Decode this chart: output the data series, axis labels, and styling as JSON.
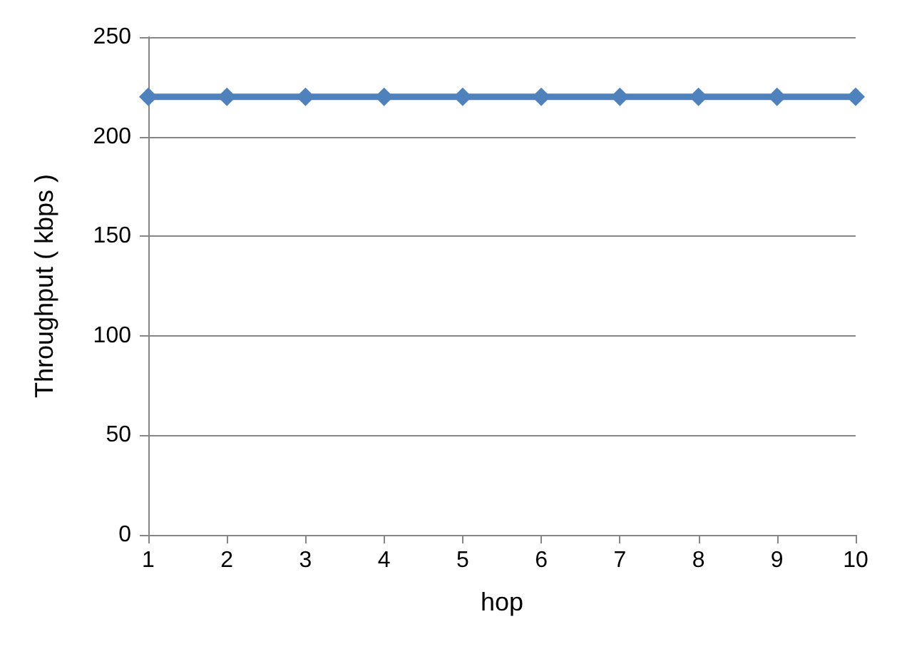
{
  "chart_data": {
    "type": "line",
    "xlabel": "hop",
    "ylabel": "Throughput ( kbps )",
    "x": [
      1,
      2,
      3,
      4,
      5,
      6,
      7,
      8,
      9,
      10
    ],
    "series": [
      {
        "color": "#4f81bd",
        "values": [
          220,
          220,
          220,
          220,
          220,
          220,
          220,
          220,
          220,
          220
        ]
      }
    ],
    "xlim": [
      1,
      10
    ],
    "xticks": [
      1,
      2,
      3,
      4,
      5,
      6,
      7,
      8,
      9,
      10
    ],
    "ylim": [
      0,
      250
    ],
    "yticks": [
      0,
      50,
      100,
      150,
      200,
      250
    ],
    "grid": "y",
    "marker": "diamond",
    "line_style": "solid"
  }
}
